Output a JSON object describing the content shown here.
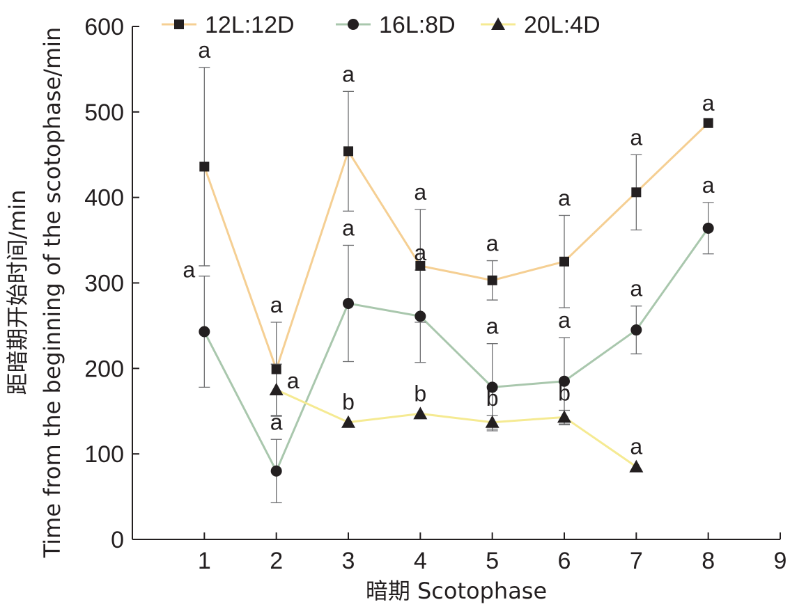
{
  "chart_data": {
    "type": "line",
    "title": "",
    "xlabel": "暗期 Scotophase",
    "ylabel_cn": "距暗期开始时间/min",
    "ylabel_en": "Time from the beginning of the scotophase/min",
    "xlim": [
      0,
      9
    ],
    "ylim": [
      0,
      600
    ],
    "x_ticks": [
      "1",
      "2",
      "3",
      "4",
      "5",
      "6",
      "7",
      "8",
      "9"
    ],
    "y_ticks": [
      "0",
      "100",
      "200",
      "300",
      "400",
      "500",
      "600"
    ],
    "legend_position": "top",
    "series": [
      {
        "name": "12L:12D",
        "color": "#f5cf93",
        "marker": "square",
        "x": [
          1,
          2,
          3,
          4,
          5,
          6,
          7,
          8
        ],
        "y": [
          436,
          199,
          454,
          320,
          303,
          325,
          406,
          487
        ],
        "err": [
          116,
          55,
          70,
          66,
          23,
          54,
          44,
          null
        ],
        "letters": [
          "a",
          "a",
          "a",
          "a",
          "a",
          "a",
          "a",
          "a"
        ]
      },
      {
        "name": "16L:8D",
        "color": "#a9c7ad",
        "marker": "circle",
        "x": [
          1,
          2,
          3,
          4,
          5,
          6,
          7,
          8
        ],
        "y": [
          243,
          80,
          276,
          261,
          178,
          185,
          245,
          364
        ],
        "err": [
          65,
          37,
          68,
          54,
          51,
          51,
          28,
          30
        ],
        "letters": [
          "a",
          "a",
          "a",
          "a",
          "a",
          "a",
          "a",
          "a"
        ]
      },
      {
        "name": "20L:4D",
        "color": "#f5ea92",
        "marker": "triangle",
        "x": [
          2,
          3,
          4,
          5,
          6,
          7
        ],
        "y": [
          175,
          137,
          147,
          137,
          143,
          85
        ],
        "err": [
          30,
          null,
          null,
          8,
          8,
          null
        ],
        "letters": [
          "a",
          "b",
          "b",
          "b",
          "b",
          "a"
        ]
      }
    ]
  }
}
